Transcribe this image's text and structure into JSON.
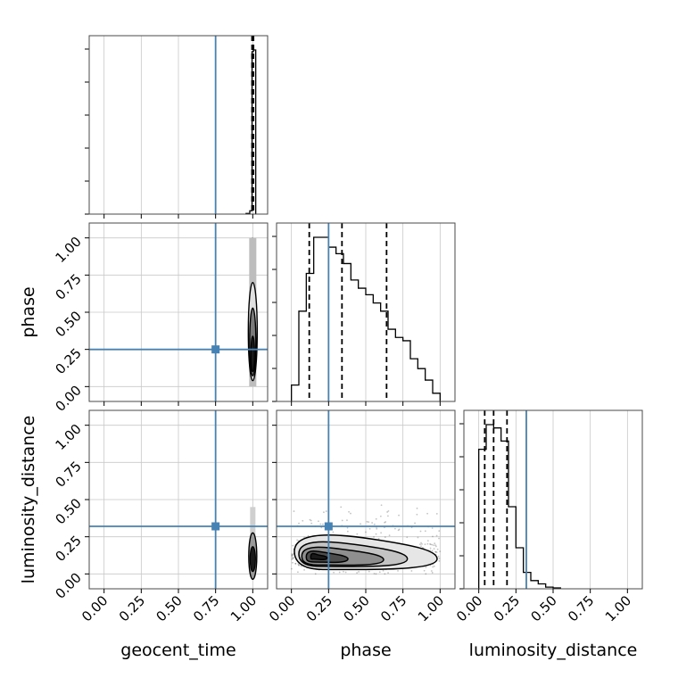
{
  "chart_data": {
    "type": "corner",
    "parameters": [
      "geocent_time",
      "phase",
      "luminosity_distance"
    ],
    "axis_range": [
      -0.1,
      1.1
    ],
    "ticks": [
      0,
      0.25,
      0.5,
      0.75,
      1.0
    ],
    "tick_labels": [
      "0.00",
      "0.25",
      "0.50",
      "0.75",
      "1.00"
    ],
    "grid": true,
    "colors": {
      "truth": "#4682b4",
      "histogram": "#000000",
      "quantile": "#000000",
      "grid": "#c8c8c8",
      "frame": "#4a4a4a"
    },
    "truths": {
      "geocent_time": 0.75,
      "phase": 0.25,
      "luminosity_distance": 0.32
    },
    "diagonal": [
      {
        "parameter": "geocent_time",
        "bin_edges": [
          0.955,
          0.98,
          0.995,
          1.005,
          1.02
        ],
        "counts": [
          0.2,
          1.0,
          49.0,
          49.5
        ],
        "quantiles": [
          0.995,
          1.0,
          1.005
        ]
      },
      {
        "parameter": "phase",
        "bin_edges": [
          0,
          0.05,
          0.1,
          0.15,
          0.2,
          0.25,
          0.3,
          0.35,
          0.4,
          0.45,
          0.5,
          0.55,
          0.6,
          0.65,
          0.7,
          0.75,
          0.8,
          0.85,
          0.9,
          0.95,
          1.0
        ],
        "counts": [
          0.1,
          0.55,
          0.78,
          1.0,
          1.0,
          0.94,
          0.9,
          0.84,
          0.74,
          0.69,
          0.65,
          0.6,
          0.55,
          0.44,
          0.39,
          0.37,
          0.26,
          0.2,
          0.13,
          0.05
        ],
        "quantiles": [
          0.12,
          0.34,
          0.64
        ]
      },
      {
        "parameter": "luminosity_distance",
        "bin_edges": [
          0,
          0.05,
          0.1,
          0.15,
          0.2,
          0.25,
          0.3,
          0.35,
          0.4,
          0.45,
          0.5,
          0.55
        ],
        "counts": [
          0.85,
          1.0,
          0.98,
          0.9,
          0.5,
          0.25,
          0.1,
          0.05,
          0.03,
          0.01,
          0.005
        ],
        "quantiles": [
          0.04,
          0.1,
          0.19
        ]
      }
    ],
    "scatter_panels": [
      {
        "x": "geocent_time",
        "y": "phase",
        "x_center": 1.0,
        "x_spread": 0.012,
        "y_range": [
          0,
          1
        ]
      },
      {
        "x": "geocent_time",
        "y": "luminosity_distance",
        "x_center": 1.0,
        "x_spread": 0.012,
        "y_range": [
          0,
          0.55
        ]
      },
      {
        "x": "phase",
        "y": "luminosity_distance",
        "x_range": [
          0,
          1
        ],
        "y_range": [
          0,
          0.6
        ]
      }
    ]
  }
}
